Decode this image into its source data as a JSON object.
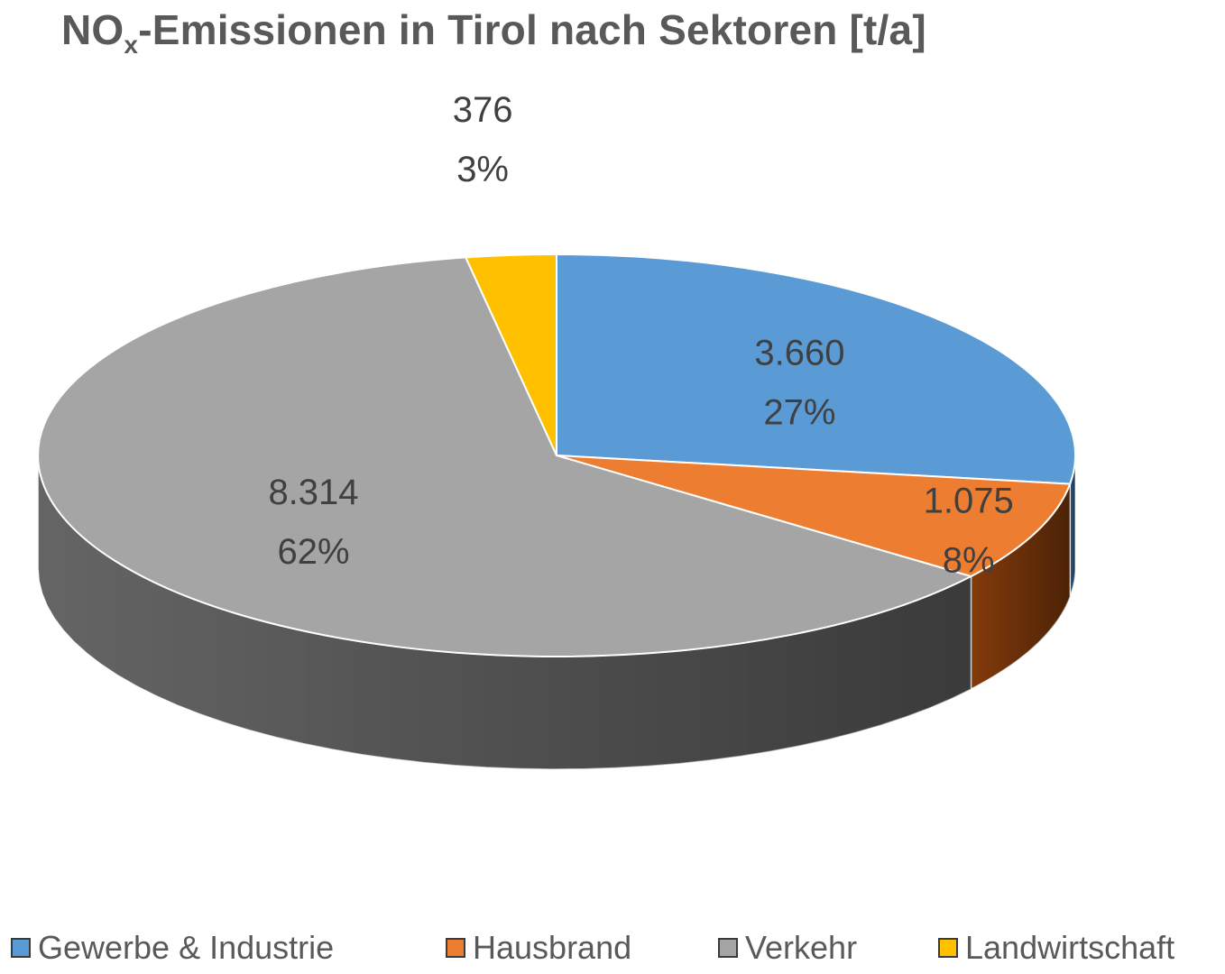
{
  "chart_data": {
    "type": "pie",
    "title": {
      "main": "NO",
      "sub": "x",
      "rest": "-Emissionen in Tirol nach Sektoren [t/a]"
    },
    "slices": [
      {
        "name": "Gewerbe & Industrie",
        "value": 3660,
        "value_label": "3.660",
        "percent_label": "27%",
        "color": "#5b9bd5",
        "side_color": "#2f5f91"
      },
      {
        "name": "Hausbrand",
        "value": 1075,
        "value_label": "1.075",
        "percent_label": "8%",
        "color": "#ed7d31",
        "side_color": "#8a3e0c"
      },
      {
        "name": "Verkehr",
        "value": 8314,
        "value_label": "8.314",
        "percent_label": "62%",
        "color": "#a5a5a5",
        "side_color": "#6a6a6a"
      },
      {
        "name": "Landwirtschaft",
        "value": 376,
        "value_label": "376",
        "percent_label": "3%",
        "color": "#ffc000",
        "side_color": "#a87f00"
      }
    ],
    "legend_position": "bottom",
    "style": "3d-pie"
  }
}
